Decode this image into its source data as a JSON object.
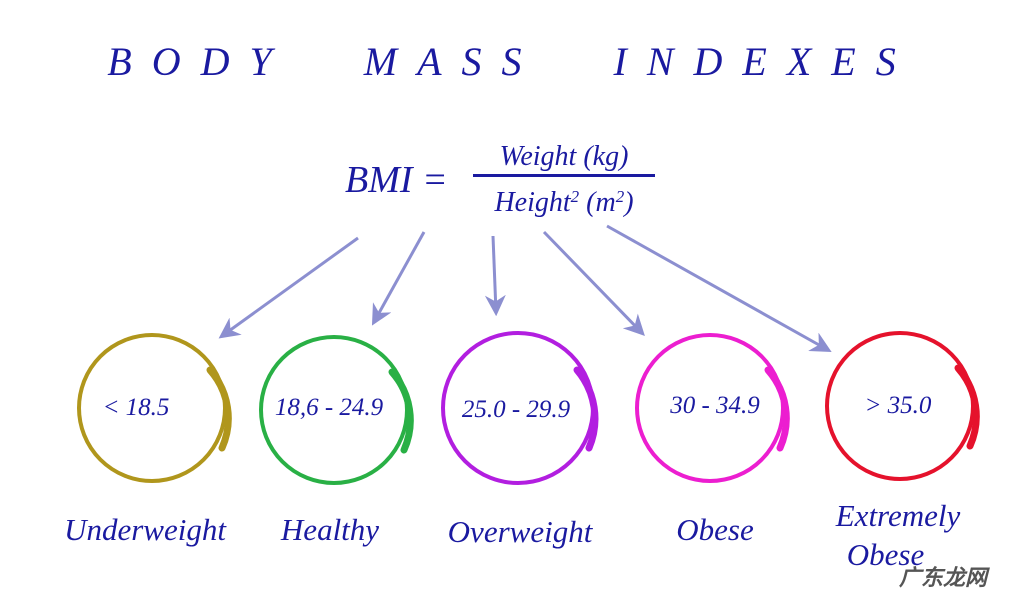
{
  "title": "BODY MASS INDEXES",
  "formula": {
    "lhs": "BMI =",
    "numerator": "Weight (kg)",
    "denominator_main": "Height",
    "denominator_exp": "2",
    "denominator_unit_open": "(m",
    "denominator_unit_exp": "2",
    "denominator_unit_close": ")"
  },
  "categories": [
    {
      "range": "< 18.5",
      "label": "Underweight",
      "color": "#b0961c"
    },
    {
      "range": "18,6 - 24.9",
      "label": "Healthy",
      "color": "#29b045"
    },
    {
      "range": "25.0 - 29.9",
      "label": "Overweight",
      "color": "#b21ee0"
    },
    {
      "range": "30 - 34.9",
      "label": "Obese",
      "color": "#ec1ed0"
    },
    {
      "range": "> 35.0",
      "label_line1": "Extremely",
      "label_line2": "Obese",
      "color": "#e5122c"
    }
  ],
  "text_color": "#1a1aa0",
  "arrow_color": "#8c8fd0",
  "watermark": "广东龙网"
}
